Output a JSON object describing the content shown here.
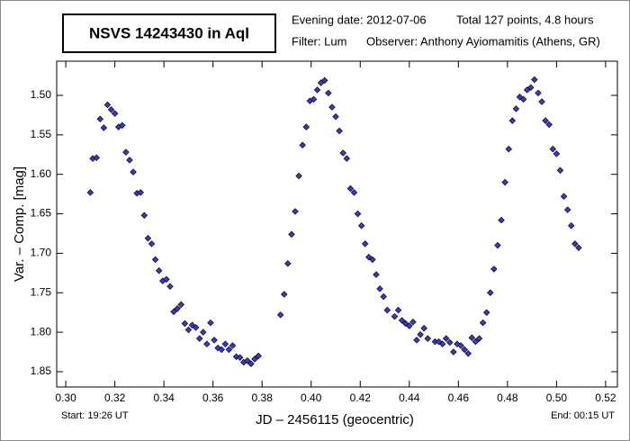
{
  "chart_data": {
    "type": "scatter",
    "title": "NSVS 14243430 in Aql",
    "info": [
      "Evening date: 2012-07-06",
      "Total 127 points, 4.8 hours",
      "Filter: Lum",
      "Observer: Anthony Ayiomamitis (Athens, GR)"
    ],
    "xlabel": "JD – 2456115  (geocentric)",
    "ylabel": "Var. – Comp. [mag]",
    "start_label": "Start: 19:26 UT",
    "end_label": "End: 00:15 UT",
    "color": "#3a3ad0",
    "xlim": [
      0.2963,
      0.5248
    ],
    "ylim": [
      1.8694,
      1.4567
    ],
    "xticks": [
      {
        "value": 0.3,
        "label": "0.30"
      },
      {
        "value": 0.32,
        "label": "0.32"
      },
      {
        "value": 0.34,
        "label": "0.34"
      },
      {
        "value": 0.36,
        "label": "0.36"
      },
      {
        "value": 0.38,
        "label": "0.38"
      },
      {
        "value": 0.4,
        "label": "0.40"
      },
      {
        "value": 0.42,
        "label": "0.42"
      },
      {
        "value": 0.44,
        "label": "0.44"
      },
      {
        "value": 0.46,
        "label": "0.46"
      },
      {
        "value": 0.48,
        "label": "0.48"
      },
      {
        "value": 0.5,
        "label": "0.50"
      },
      {
        "value": 0.52,
        "label": "0.52"
      }
    ],
    "yticks": [
      {
        "value": 1.5,
        "label": "1.50"
      },
      1.55,
      {
        "value": 1.6,
        "label": "1.60"
      },
      1.65,
      {
        "value": 1.7,
        "label": "1.70"
      },
      1.75,
      {
        "value": 1.8,
        "label": "1.80"
      },
      1.85
    ],
    "x": [
      0.31,
      0.311,
      0.3125,
      0.314,
      0.3155,
      0.317,
      0.3185,
      0.32,
      0.3215,
      0.323,
      0.3245,
      0.326,
      0.3275,
      0.329,
      0.3305,
      0.332,
      0.3335,
      0.335,
      0.3365,
      0.338,
      0.3395,
      0.341,
      0.3425,
      0.344,
      0.3455,
      0.347,
      0.3485,
      0.35,
      0.3515,
      0.353,
      0.3545,
      0.356,
      0.3575,
      0.359,
      0.3605,
      0.362,
      0.3635,
      0.365,
      0.3665,
      0.368,
      0.3695,
      0.371,
      0.3725,
      0.374,
      0.3755,
      0.377,
      0.3785,
      0.3875,
      0.389,
      0.3905,
      0.392,
      0.3935,
      0.395,
      0.3965,
      0.398,
      0.3995,
      0.401,
      0.4025,
      0.404,
      0.4055,
      0.407,
      0.4085,
      0.41,
      0.4115,
      0.413,
      0.4145,
      0.416,
      0.4175,
      0.419,
      0.4205,
      0.422,
      0.4235,
      0.425,
      0.4265,
      0.428,
      0.4295,
      0.431,
      0.434,
      0.4355,
      0.437,
      0.4385,
      0.44,
      0.4415,
      0.443,
      0.4445,
      0.446,
      0.4475,
      0.4505,
      0.452,
      0.4535,
      0.455,
      0.4565,
      0.458,
      0.4595,
      0.461,
      0.4625,
      0.464,
      0.4655,
      0.467,
      0.4685,
      0.47,
      0.4715,
      0.473,
      0.4745,
      0.476,
      0.4775,
      0.479,
      0.4805,
      0.482,
      0.4835,
      0.485,
      0.4865,
      0.488,
      0.4895,
      0.491,
      0.4925,
      0.494,
      0.4955,
      0.497,
      0.4985,
      0.5,
      0.5015,
      0.503,
      0.5045,
      0.506,
      0.5075,
      0.509
    ],
    "values": [
      1.623,
      1.58,
      1.579,
      1.53,
      1.541,
      1.512,
      1.518,
      1.523,
      1.54,
      1.538,
      1.572,
      1.582,
      1.597,
      1.624,
      1.623,
      1.652,
      1.681,
      1.688,
      1.708,
      1.722,
      1.735,
      1.733,
      1.742,
      1.774,
      1.77,
      1.765,
      1.789,
      1.797,
      1.791,
      1.794,
      1.808,
      1.8,
      1.815,
      1.788,
      1.81,
      1.82,
      1.822,
      1.815,
      1.822,
      1.817,
      1.831,
      1.832,
      1.838,
      1.836,
      1.84,
      1.834,
      1.83,
      1.778,
      1.752,
      1.713,
      1.676,
      1.647,
      1.602,
      1.563,
      1.54,
      1.507,
      1.505,
      1.493,
      1.484,
      1.481,
      1.497,
      1.515,
      1.527,
      1.545,
      1.573,
      1.58,
      1.618,
      1.623,
      1.65,
      1.665,
      1.688,
      1.705,
      1.708,
      1.727,
      1.745,
      1.755,
      1.772,
      1.78,
      1.772,
      1.785,
      1.789,
      1.792,
      1.787,
      1.81,
      1.803,
      1.795,
      1.808,
      1.812,
      1.812,
      1.815,
      1.808,
      1.813,
      1.825,
      1.815,
      1.817,
      1.822,
      1.827,
      1.807,
      1.812,
      1.808,
      1.788,
      1.775,
      1.75,
      1.72,
      1.69,
      1.658,
      1.61,
      1.568,
      1.532,
      1.517,
      1.502,
      1.505,
      1.493,
      1.49,
      1.48,
      1.497,
      1.508,
      1.532,
      1.537,
      1.568,
      1.574,
      1.595,
      1.628,
      1.645,
      1.665,
      1.688,
      1.693
    ]
  }
}
